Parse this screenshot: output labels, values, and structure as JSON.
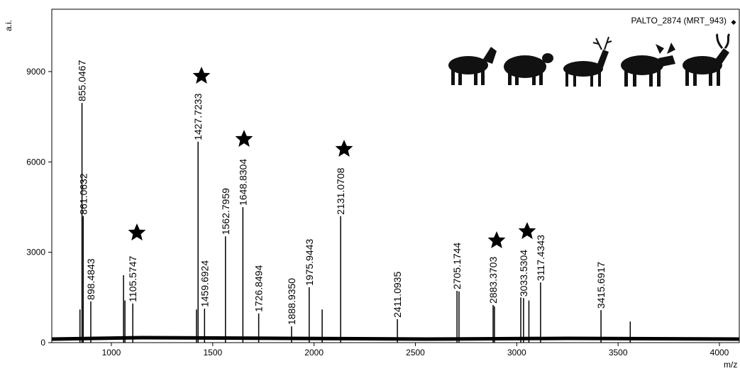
{
  "chart_data": {
    "type": "spectrum",
    "y_label": "a.i.",
    "x_label": "m/z",
    "xlim": [
      706,
      4098
    ],
    "ylim": [
      0,
      11070
    ],
    "xticks": [
      1000,
      1500,
      2000,
      2500,
      3000,
      3500,
      4000
    ],
    "yticks": [
      0,
      3000,
      6000,
      9000
    ],
    "series": [
      {
        "name": "PALTO_2874 (MRT_943)",
        "color": "#000000",
        "x": [
          855.0467,
          861.0632,
          898.4843,
          1105.5747,
          1427.7233,
          1459.6924,
          1562.7959,
          1648.8304,
          1726.8494,
          1888.935,
          1975.9443,
          2131.0708,
          2411.0935,
          2705.1744,
          2883.3703,
          3033.5304,
          3117.4343,
          3415.6917
        ],
        "values": [
          7960,
          4200,
          1370,
          1300,
          6670,
          1130,
          3530,
          4500,
          970,
          540,
          1840,
          4200,
          780,
          1720,
          1250,
          1480,
          2000,
          1080
        ],
        "value_labels": [
          "855.0467",
          "861.0632",
          "898.4843",
          "1105.5747",
          "1427.7233",
          "1459.6924",
          "1562.7959",
          "1648.8304",
          "1726.8494",
          "1888.9350",
          "1975.9443",
          "2131.0708",
          "2411.0935",
          "2705.1744",
          "2883.3703",
          "3033.5304",
          "3117.4343",
          "3415.6917"
        ]
      }
    ],
    "unlabeled_peaks": {
      "x": [
        845,
        1060,
        1067,
        1420,
        2040,
        2715,
        2890,
        3020,
        3060,
        3560
      ],
      "values": [
        1100,
        2240,
        1400,
        1100,
        1100,
        1700,
        1200,
        1500,
        1400,
        700
      ]
    }
  }
}
